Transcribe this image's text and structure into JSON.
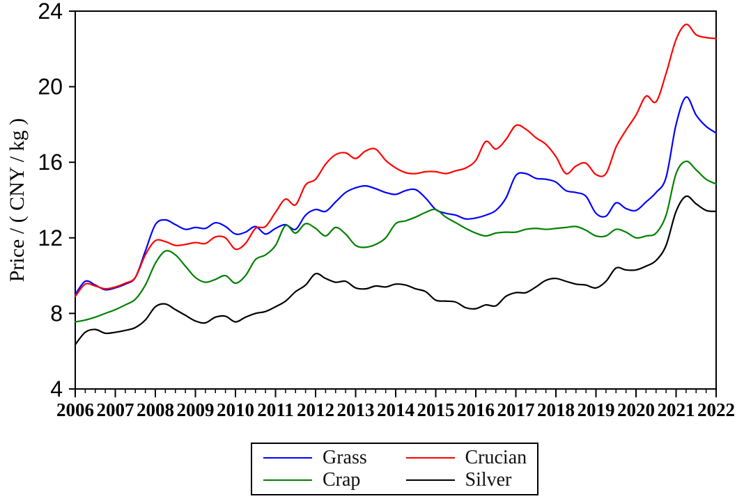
{
  "chart_data": {
    "type": "line",
    "title": "",
    "xlabel": "",
    "ylabel": "Price / ( CNY / kg )",
    "xlim": [
      2006,
      2022
    ],
    "ylim": [
      4,
      24
    ],
    "grid": false,
    "legend_position": "bottom-center",
    "x_ticks": [
      2006,
      2007,
      2008,
      2009,
      2010,
      2011,
      2012,
      2013,
      2014,
      2015,
      2016,
      2017,
      2018,
      2019,
      2020,
      2021,
      2022
    ],
    "x_minor_tick_step": 0.25,
    "y_ticks": [
      4,
      8,
      12,
      16,
      20,
      24
    ],
    "x": [
      2006.0,
      2006.25,
      2006.5,
      2006.75,
      2007.0,
      2007.25,
      2007.5,
      2007.75,
      2008.0,
      2008.25,
      2008.5,
      2008.75,
      2009.0,
      2009.25,
      2009.5,
      2009.75,
      2010.0,
      2010.25,
      2010.5,
      2010.75,
      2011.0,
      2011.25,
      2011.5,
      2011.75,
      2012.0,
      2012.25,
      2012.5,
      2012.75,
      2013.0,
      2013.25,
      2013.5,
      2013.75,
      2014.0,
      2014.25,
      2014.5,
      2014.75,
      2015.0,
      2015.25,
      2015.5,
      2015.75,
      2016.0,
      2016.25,
      2016.5,
      2016.75,
      2017.0,
      2017.25,
      2017.5,
      2017.75,
      2018.0,
      2018.25,
      2018.5,
      2018.75,
      2019.0,
      2019.25,
      2019.5,
      2019.75,
      2020.0,
      2020.25,
      2020.5,
      2020.75,
      2021.0,
      2021.25,
      2021.5,
      2021.75,
      2022.0
    ],
    "series": [
      {
        "name": "Grass",
        "color": "#0000ff",
        "values": [
          9.0,
          9.7,
          9.5,
          9.25,
          9.35,
          9.55,
          9.9,
          11.3,
          12.7,
          12.95,
          12.7,
          12.45,
          12.55,
          12.5,
          12.8,
          12.6,
          12.2,
          12.3,
          12.6,
          12.2,
          12.5,
          12.7,
          12.45,
          13.2,
          13.5,
          13.4,
          13.9,
          14.4,
          14.65,
          14.75,
          14.6,
          14.4,
          14.3,
          14.5,
          14.55,
          14.1,
          13.5,
          13.3,
          13.2,
          13.0,
          13.05,
          13.2,
          13.45,
          14.1,
          15.3,
          15.4,
          15.15,
          15.1,
          14.95,
          14.5,
          14.4,
          14.2,
          13.3,
          13.15,
          13.85,
          13.55,
          13.45,
          13.9,
          14.4,
          15.2,
          18.0,
          19.45,
          18.5,
          17.9,
          17.55
        ]
      },
      {
        "name": "Crucian",
        "color": "#ff0000",
        "values": [
          8.9,
          9.55,
          9.45,
          9.3,
          9.4,
          9.6,
          9.9,
          11.1,
          11.85,
          11.8,
          11.6,
          11.65,
          11.75,
          11.7,
          12.05,
          12.0,
          11.4,
          11.7,
          12.5,
          12.6,
          13.35,
          14.05,
          13.75,
          14.8,
          15.1,
          15.9,
          16.4,
          16.5,
          16.2,
          16.6,
          16.7,
          16.1,
          15.7,
          15.45,
          15.4,
          15.5,
          15.5,
          15.4,
          15.55,
          15.7,
          16.1,
          17.1,
          16.7,
          17.2,
          17.95,
          17.75,
          17.3,
          16.95,
          16.3,
          15.4,
          15.8,
          15.95,
          15.35,
          15.4,
          16.8,
          17.7,
          18.5,
          19.5,
          19.2,
          20.7,
          22.5,
          23.3,
          22.75,
          22.6,
          22.55
        ]
      },
      {
        "name": "Crap",
        "color": "#008000",
        "values": [
          7.55,
          7.65,
          7.8,
          8.0,
          8.2,
          8.45,
          8.75,
          9.5,
          10.65,
          11.3,
          11.1,
          10.5,
          9.9,
          9.65,
          9.8,
          10.0,
          9.6,
          10.0,
          10.85,
          11.1,
          11.6,
          12.65,
          12.25,
          12.75,
          12.5,
          12.1,
          12.55,
          12.2,
          11.6,
          11.5,
          11.65,
          12.0,
          12.75,
          12.9,
          13.1,
          13.35,
          13.5,
          13.1,
          12.8,
          12.5,
          12.25,
          12.1,
          12.25,
          12.3,
          12.3,
          12.45,
          12.5,
          12.45,
          12.5,
          12.55,
          12.6,
          12.4,
          12.1,
          12.1,
          12.45,
          12.3,
          12.0,
          12.1,
          12.25,
          13.2,
          15.4,
          16.05,
          15.6,
          15.1,
          14.85
        ]
      },
      {
        "name": "Silver",
        "color": "#000000",
        "values": [
          6.35,
          7.0,
          7.15,
          6.95,
          7.0,
          7.1,
          7.25,
          7.65,
          8.35,
          8.5,
          8.2,
          7.9,
          7.6,
          7.5,
          7.8,
          7.85,
          7.55,
          7.8,
          8.0,
          8.1,
          8.35,
          8.65,
          9.15,
          9.5,
          10.1,
          9.85,
          9.65,
          9.7,
          9.35,
          9.3,
          9.45,
          9.4,
          9.55,
          9.5,
          9.3,
          9.15,
          8.7,
          8.65,
          8.6,
          8.3,
          8.25,
          8.45,
          8.4,
          8.9,
          9.1,
          9.1,
          9.4,
          9.75,
          9.85,
          9.7,
          9.55,
          9.5,
          9.35,
          9.7,
          10.4,
          10.3,
          10.3,
          10.5,
          10.8,
          11.6,
          13.4,
          14.2,
          13.8,
          13.45,
          13.4
        ]
      }
    ]
  },
  "legend": {
    "items": [
      {
        "label": "Grass",
        "color": "#0000ff"
      },
      {
        "label": "Crucian",
        "color": "#ff0000"
      },
      {
        "label": "Crap",
        "color": "#008000"
      },
      {
        "label": "Silver",
        "color": "#000000"
      }
    ]
  }
}
